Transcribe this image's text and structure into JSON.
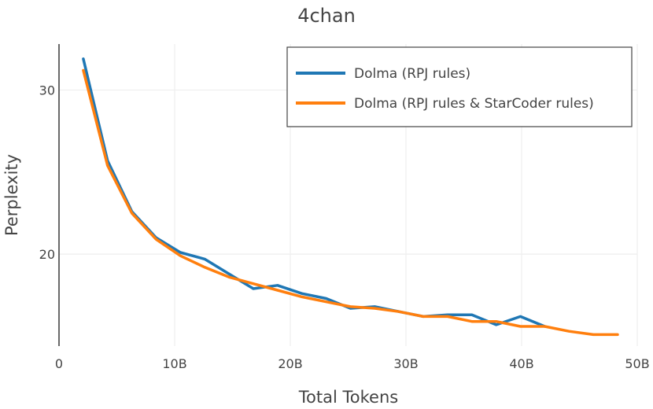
{
  "chart_data": {
    "type": "line",
    "title": "4chan",
    "xlabel": "Total Tokens",
    "ylabel": "Perplexity",
    "xlim": [
      0,
      50
    ],
    "ylim": [
      14.4,
      32.8
    ],
    "x_ticks": [
      0,
      10,
      20,
      30,
      40,
      50
    ],
    "x_tick_labels": [
      "0",
      "10B",
      "20B",
      "30B",
      "40B",
      "50B"
    ],
    "y_ticks": [
      20,
      30
    ],
    "y_tick_labels": [
      "20",
      "30"
    ],
    "grid": true,
    "legend_position": "top-right",
    "series": [
      {
        "name": "Dolma (RPJ rules)",
        "color": "#1f77b4",
        "x": [
          2.1,
          4.2,
          6.3,
          8.4,
          10.5,
          12.6,
          14.7,
          16.8,
          18.9,
          21.0,
          23.1,
          25.2,
          27.3,
          29.4,
          31.5,
          33.6,
          35.7,
          37.8,
          39.9,
          42.0
        ],
        "y": [
          31.9,
          25.7,
          22.6,
          21.0,
          20.1,
          19.7,
          18.8,
          17.9,
          18.1,
          17.6,
          17.3,
          16.7,
          16.8,
          16.5,
          16.2,
          16.3,
          16.3,
          15.7,
          16.2,
          15.6
        ]
      },
      {
        "name": "Dolma (RPJ rules & StarCoder rules)",
        "color": "#ff7f0e",
        "x": [
          2.1,
          4.2,
          6.3,
          8.4,
          10.5,
          12.6,
          14.7,
          16.8,
          18.9,
          21.0,
          23.1,
          25.2,
          27.3,
          29.4,
          31.5,
          33.6,
          35.7,
          37.8,
          39.9,
          42.0,
          44.1,
          46.2,
          48.3
        ],
        "y": [
          31.2,
          25.4,
          22.5,
          20.9,
          19.9,
          19.2,
          18.6,
          18.2,
          17.8,
          17.4,
          17.1,
          16.8,
          16.7,
          16.5,
          16.2,
          16.2,
          15.9,
          15.9,
          15.6,
          15.6,
          15.3,
          15.1,
          15.1
        ]
      }
    ]
  }
}
